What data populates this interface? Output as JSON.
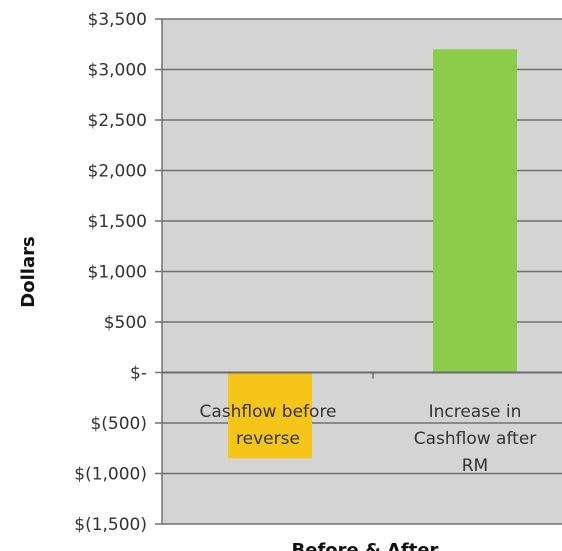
{
  "chart_data": {
    "type": "bar",
    "title": "",
    "xlabel": "Before & After",
    "ylabel": "Dollars",
    "ylim": [
      -1500,
      3500
    ],
    "yticks": [
      {
        "value": 3500,
        "label": "$3,500"
      },
      {
        "value": 3000,
        "label": "$3,000"
      },
      {
        "value": 2500,
        "label": "$2,500"
      },
      {
        "value": 2000,
        "label": "$2,000"
      },
      {
        "value": 1500,
        "label": "$1,500"
      },
      {
        "value": 1000,
        "label": "$1,000"
      },
      {
        "value": 500,
        "label": "$500"
      },
      {
        "value": 0,
        "label": "$-"
      },
      {
        "value": -500,
        "label": "$(500)"
      },
      {
        "value": -1000,
        "label": "$(1,000)"
      },
      {
        "value": -1500,
        "label": "$(1,500)"
      }
    ],
    "categories": [
      {
        "lines": [
          "Cashflow before",
          "reverse"
        ]
      },
      {
        "lines": [
          "Increase in",
          "Cashflow after",
          "RM"
        ]
      }
    ],
    "values": [
      -850,
      3200
    ],
    "colors": [
      "#f5c518",
      "#8ccc4a"
    ],
    "plot_background": "#d4d4d4",
    "gridlines": true,
    "legend": "none"
  }
}
